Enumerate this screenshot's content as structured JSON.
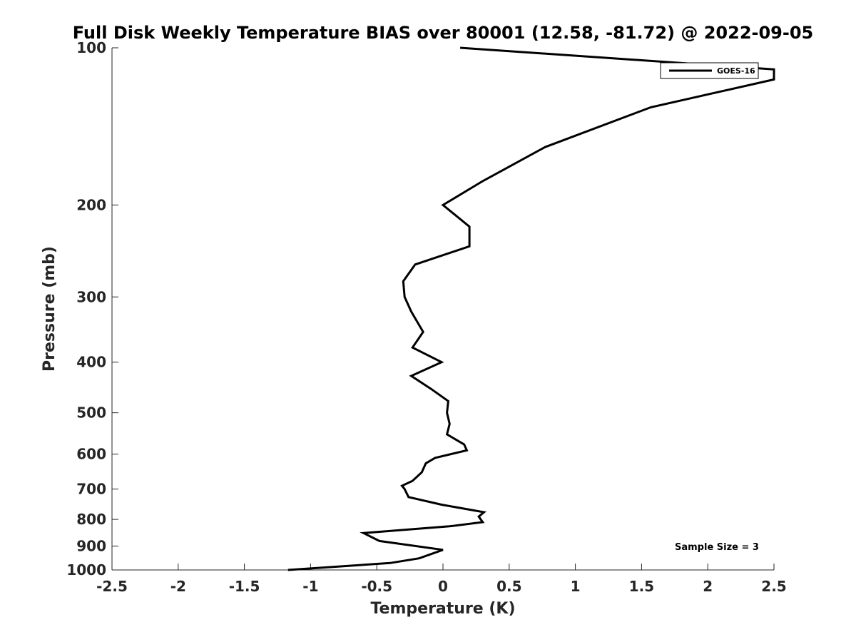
{
  "chart_data": {
    "type": "line",
    "title": "Full Disk Weekly Temperature BIAS over 80001 (12.58, -81.72) @ 2022-09-05",
    "xlabel": "Temperature (K)",
    "ylabel": "Pressure (mb)",
    "xlim": [
      -2.5,
      2.5
    ],
    "ylim": [
      100,
      1000
    ],
    "y_scale": "log",
    "y_reversed": true,
    "grid": false,
    "xticks": [
      -2.5,
      -2,
      -1.5,
      -1,
      -0.5,
      0,
      0.5,
      1,
      1.5,
      2,
      2.5
    ],
    "xtick_labels": [
      "-2.5",
      "-2",
      "-1.5",
      "-1",
      "-0.5",
      "0",
      "0.5",
      "1",
      "1.5",
      "2",
      "2.5"
    ],
    "yticks": [
      100,
      200,
      300,
      400,
      500,
      600,
      700,
      800,
      900,
      1000
    ],
    "ytick_labels": [
      "100",
      "200",
      "300",
      "400",
      "500",
      "600",
      "700",
      "800",
      "900",
      "1000"
    ],
    "legend_position": "top-right",
    "annotation": "Sample Size = 3",
    "series": [
      {
        "name": "GOES-16",
        "color": "#000000",
        "x": [
          0.13,
          2.5,
          2.5,
          1.57,
          0.77,
          0.3,
          0.0,
          0.2,
          0.2,
          -0.21,
          -0.3,
          -0.29,
          -0.24,
          -0.15,
          -0.23,
          -0.01,
          -0.24,
          -0.09,
          0.04,
          0.03,
          0.05,
          0.03,
          0.16,
          0.18,
          -0.06,
          -0.13,
          -0.16,
          -0.23,
          -0.31,
          -0.29,
          -0.26,
          -0.01,
          0.31,
          0.27,
          0.3,
          0.05,
          -0.6,
          -0.48,
          0.0,
          -0.18,
          -0.4,
          -1.17
        ],
        "y": [
          100,
          110,
          115,
          130,
          155,
          180,
          200,
          220,
          240,
          260,
          280,
          300,
          320,
          350,
          375,
          400,
          425,
          450,
          475,
          500,
          525,
          550,
          575,
          590,
          610,
          625,
          650,
          675,
          690,
          700,
          725,
          750,
          775,
          790,
          810,
          825,
          850,
          880,
          915,
          950,
          970,
          1000
        ]
      }
    ]
  }
}
